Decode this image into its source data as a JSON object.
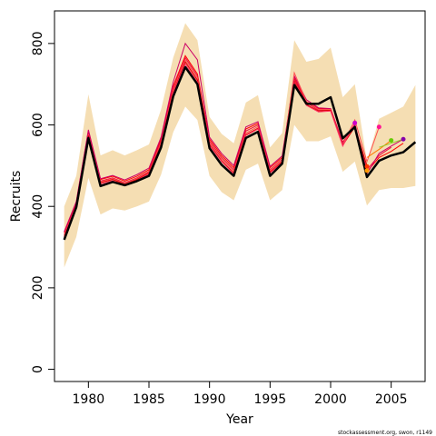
{
  "chart_data": {
    "type": "line",
    "xlabel": "Year",
    "ylabel": "Recruits",
    "xlim": [
      1977.2,
      2007.8
    ],
    "ylim": [
      -30,
      880
    ],
    "x_ticks": [
      1980,
      1985,
      1990,
      1995,
      2000,
      2005
    ],
    "y_ticks": [
      0,
      200,
      400,
      600,
      800
    ],
    "grid": false,
    "legend": "none",
    "footer": "stockassessment.org, swon, r1149",
    "colors": {
      "band": "#f5deb3",
      "final": "#000000",
      "retro": [
        "#ff0000",
        "#e8103f",
        "#cc0066",
        "#ff5050",
        "#dd0000",
        "#ff3366",
        "#ff7a00",
        "#8fcf2a",
        "#8800aa"
      ]
    },
    "band": {
      "x": [
        1978,
        1979,
        1980,
        1981,
        1982,
        1983,
        1984,
        1985,
        1986,
        1987,
        1988,
        1989,
        1990,
        1991,
        1992,
        1993,
        1994,
        1995,
        1996,
        1997,
        1998,
        1999,
        2000,
        2001,
        2002,
        2003,
        2004,
        2005,
        2006,
        2007
      ],
      "upper": [
        400,
        475,
        675,
        525,
        538,
        525,
        538,
        552,
        638,
        765,
        850,
        808,
        620,
        578,
        555,
        655,
        673,
        545,
        580,
        808,
        755,
        762,
        790,
        668,
        700,
        510,
        615,
        630,
        645,
        698
      ],
      "lower": [
        250,
        325,
        470,
        380,
        395,
        390,
        400,
        412,
        478,
        582,
        645,
        612,
        475,
        435,
        415,
        490,
        505,
        415,
        440,
        600,
        560,
        560,
        572,
        485,
        510,
        402,
        440,
        445,
        445,
        450
      ]
    },
    "final": {
      "x": [
        1978,
        1979,
        1980,
        1981,
        1982,
        1983,
        1984,
        1985,
        1986,
        1987,
        1988,
        1989,
        1990,
        1991,
        1992,
        1993,
        1994,
        1995,
        1996,
        1997,
        1998,
        1999,
        2000,
        2001,
        2002,
        2003,
        2004,
        2005,
        2006,
        2007
      ],
      "y": [
        318,
        398,
        568,
        450,
        460,
        452,
        462,
        475,
        545,
        670,
        742,
        700,
        543,
        502,
        475,
        568,
        583,
        475,
        505,
        698,
        652,
        652,
        668,
        567,
        595,
        472,
        512,
        525,
        533,
        558
      ]
    },
    "retro_series": [
      {
        "x": [
          1978,
          1979,
          1980,
          1981,
          1982,
          1983,
          1984,
          1985,
          1986,
          1987,
          1988,
          1989,
          1990,
          1991,
          1992,
          1993,
          1994,
          1995,
          1996,
          1997,
          1998,
          1999,
          2000,
          2001,
          2002,
          2003,
          2004,
          2005,
          2006
        ],
        "y": [
          335,
          410,
          585,
          466,
          474,
          462,
          474,
          490,
          565,
          695,
          770,
          725,
          565,
          525,
          495,
          590,
          604,
          495,
          520,
          715,
          657,
          640,
          640,
          558,
          598,
          485,
          520,
          535,
          555
        ]
      },
      {
        "x": [
          1978,
          1979,
          1980,
          1981,
          1982,
          1983,
          1984,
          1985,
          1986,
          1987,
          1988,
          1989,
          1990,
          1991,
          1992,
          1993,
          1994,
          1995,
          1996,
          1997,
          1998,
          1999,
          2000,
          2001,
          2002,
          2003,
          2004,
          2005
        ],
        "y": [
          330,
          405,
          580,
          462,
          470,
          458,
          470,
          486,
          560,
          690,
          765,
          720,
          560,
          520,
          490,
          585,
          600,
          490,
          516,
          710,
          655,
          636,
          636,
          555,
          600,
          490,
          525,
          545
        ]
      },
      {
        "x": [
          1978,
          1979,
          1980,
          1981,
          1982,
          1983,
          1984,
          1985,
          1986,
          1987,
          1988,
          1989,
          1990,
          1991,
          1992,
          1993,
          1994,
          1995,
          1996,
          1997,
          1998,
          1999,
          2000,
          2001,
          2002,
          2003,
          2004,
          2005,
          2006
        ],
        "y": [
          338,
          412,
          588,
          468,
          476,
          465,
          478,
          494,
          570,
          705,
          800,
          760,
          570,
          530,
          500,
          595,
          608,
          498,
          524,
          720,
          662,
          642,
          640,
          556,
          602,
          480,
          530,
          548,
          565
        ]
      },
      {
        "x": [
          1978,
          1979,
          1980,
          1981,
          1982,
          1983,
          1984,
          1985,
          1986,
          1987,
          1988,
          1989,
          1990,
          1991,
          1992,
          1993,
          1994,
          1995,
          1996,
          1997,
          1998,
          1999,
          2000,
          2001,
          2002,
          2003,
          2004
        ],
        "y": [
          328,
          402,
          576,
          460,
          468,
          456,
          468,
          484,
          556,
          685,
          760,
          715,
          556,
          516,
          486,
          580,
          596,
          487,
          512,
          728,
          658,
          638,
          638,
          552,
          612,
          510,
          595
        ]
      },
      {
        "x": [
          1978,
          1979,
          1980,
          1981,
          1982,
          1983,
          1984,
          1985,
          1986,
          1987,
          1988,
          1989,
          1990,
          1991,
          1992,
          1993,
          1994,
          1995,
          1996,
          1997,
          1998,
          1999,
          2000,
          2001,
          2002,
          2003
        ],
        "y": [
          325,
          400,
          574,
          458,
          466,
          454,
          466,
          482,
          552,
          680,
          755,
          710,
          552,
          512,
          482,
          576,
          592,
          484,
          510,
          705,
          650,
          634,
          636,
          550,
          595,
          500
        ]
      },
      {
        "x": [
          1978,
          1979,
          1980,
          1981,
          1982,
          1983,
          1984,
          1985,
          1986,
          1987,
          1988,
          1989,
          1990,
          1991,
          1992,
          1993,
          1994,
          1995,
          1996,
          1997,
          1998,
          1999,
          2000,
          2001,
          2002
        ],
        "y": [
          322,
          399,
          570,
          455,
          463,
          452,
          464,
          480,
          550,
          678,
          750,
          705,
          550,
          510,
          480,
          574,
          590,
          482,
          508,
          702,
          648,
          632,
          634,
          548,
          605
        ]
      },
      {
        "x": [
          2003,
          2004,
          2005
        ],
        "y": [
          520,
          540,
          562
        ]
      },
      {
        "x": [
          2004,
          2005,
          2006
        ],
        "y": [
          545,
          555,
          565
        ]
      }
    ],
    "end_points": [
      {
        "x": 2002,
        "y": 605,
        "color": "#cc00cc"
      },
      {
        "x": 2003,
        "y": 498,
        "color": "#ff3300"
      },
      {
        "x": 2003,
        "y": 488,
        "color": "#ff9900"
      },
      {
        "x": 2004,
        "y": 595,
        "color": "#ff1493"
      },
      {
        "x": 2005,
        "y": 562,
        "color": "#66cc00"
      },
      {
        "x": 2006,
        "y": 565,
        "color": "#8800aa"
      }
    ]
  }
}
